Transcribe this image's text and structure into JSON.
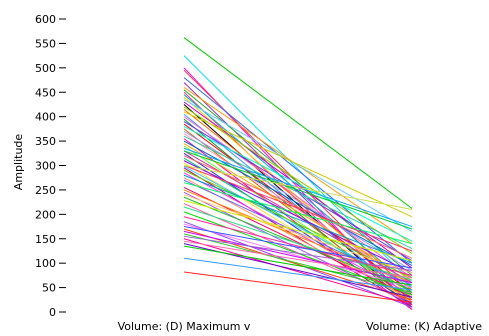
{
  "chart_data": {
    "type": "line",
    "title": "",
    "xlabel": "",
    "ylabel": "Amplitude",
    "categories": [
      "Volume: (D) Maximum v",
      "Volume: (K) Adaptive"
    ],
    "ylim": [
      0,
      600
    ],
    "yticks": [
      0,
      50,
      100,
      150,
      200,
      250,
      300,
      350,
      400,
      450,
      500,
      550,
      600
    ],
    "grid": false,
    "legend": "none",
    "series": [
      {
        "values": [
          562,
          212
        ],
        "color": "#00cc00"
      },
      {
        "values": [
          525,
          60
        ],
        "color": "#00e5ee"
      },
      {
        "values": [
          500,
          10
        ],
        "color": "#ff00ff"
      },
      {
        "values": [
          495,
          35
        ],
        "color": "#ee4444"
      },
      {
        "values": [
          480,
          100
        ],
        "color": "#3366ff"
      },
      {
        "values": [
          470,
          20
        ],
        "color": "#9933cc"
      },
      {
        "values": [
          460,
          140
        ],
        "color": "#ff9900"
      },
      {
        "values": [
          455,
          75
        ],
        "color": "#33aa33"
      },
      {
        "values": [
          450,
          5
        ],
        "color": "#ff3399"
      },
      {
        "values": [
          445,
          50
        ],
        "color": "#00bbbb"
      },
      {
        "values": [
          440,
          30
        ],
        "color": "#ffcc00"
      },
      {
        "values": [
          435,
          165
        ],
        "color": "#66ccff"
      },
      {
        "values": [
          430,
          90
        ],
        "color": "#cc00cc"
      },
      {
        "values": [
          425,
          15
        ],
        "color": "#000000"
      },
      {
        "values": [
          420,
          120
        ],
        "color": "#99cc00"
      },
      {
        "values": [
          415,
          45
        ],
        "color": "#ff6600"
      },
      {
        "values": [
          410,
          195
        ],
        "color": "#cccc00"
      },
      {
        "values": [
          405,
          25
        ],
        "color": "#3399ff"
      },
      {
        "values": [
          400,
          70
        ],
        "color": "#ff66cc"
      },
      {
        "values": [
          395,
          10
        ],
        "color": "#009933"
      },
      {
        "values": [
          390,
          105
        ],
        "color": "#6633ff"
      },
      {
        "values": [
          385,
          40
        ],
        "color": "#ff0000"
      },
      {
        "values": [
          380,
          145
        ],
        "color": "#00ffcc"
      },
      {
        "values": [
          375,
          20
        ],
        "color": "#cc6600"
      },
      {
        "values": [
          370,
          85
        ],
        "color": "#9999ff"
      },
      {
        "values": [
          365,
          55
        ],
        "color": "#ff99cc"
      },
      {
        "values": [
          360,
          130
        ],
        "color": "#33cc99"
      },
      {
        "values": [
          355,
          5
        ],
        "color": "#ff00aa"
      },
      {
        "values": [
          350,
          95
        ],
        "color": "#0066cc"
      },
      {
        "values": [
          345,
          65
        ],
        "color": "#ffaa00"
      },
      {
        "values": [
          340,
          30
        ],
        "color": "#66ff33"
      },
      {
        "values": [
          335,
          175
        ],
        "color": "#00aaff"
      },
      {
        "values": [
          330,
          60
        ],
        "color": "#cc3399"
      },
      {
        "values": [
          325,
          15
        ],
        "color": "#3333cc"
      },
      {
        "values": [
          320,
          110
        ],
        "color": "#ff6666"
      },
      {
        "values": [
          315,
          40
        ],
        "color": "#00cc66"
      },
      {
        "values": [
          310,
          80
        ],
        "color": "#9900ff"
      },
      {
        "values": [
          305,
          20
        ],
        "color": "#ffdd33"
      },
      {
        "values": [
          300,
          125
        ],
        "color": "#ff3366"
      },
      {
        "values": [
          298,
          50
        ],
        "color": "#33ccff"
      },
      {
        "values": [
          295,
          10
        ],
        "color": "#cc0066"
      },
      {
        "values": [
          290,
          70
        ],
        "color": "#66cc00"
      },
      {
        "values": [
          285,
          35
        ],
        "color": "#ff33ff"
      },
      {
        "values": [
          280,
          100
        ],
        "color": "#0099cc"
      },
      {
        "values": [
          275,
          25
        ],
        "color": "#ff9966"
      },
      {
        "values": [
          270,
          55
        ],
        "color": "#6666ff"
      },
      {
        "values": [
          265,
          140
        ],
        "color": "#00ff66"
      },
      {
        "values": [
          255,
          30
        ],
        "color": "#ff0066"
      },
      {
        "values": [
          250,
          60
        ],
        "color": "#ff8800"
      },
      {
        "values": [
          245,
          15
        ],
        "color": "#aa55ff"
      },
      {
        "values": [
          240,
          80
        ],
        "color": "#ffcc66"
      },
      {
        "values": [
          235,
          45
        ],
        "color": "#22bb22"
      },
      {
        "values": [
          228,
          105
        ],
        "color": "#ccee00"
      },
      {
        "values": [
          222,
          20
        ],
        "color": "#ff55aa"
      },
      {
        "values": [
          215,
          65
        ],
        "color": "#33dd88"
      },
      {
        "values": [
          205,
          35
        ],
        "color": "#00dd00"
      },
      {
        "values": [
          195,
          75
        ],
        "color": "#ff2299"
      },
      {
        "values": [
          185,
          10
        ],
        "color": "#8844ff"
      },
      {
        "values": [
          180,
          50
        ],
        "color": "#ff77ff"
      },
      {
        "values": [
          175,
          90
        ],
        "color": "#3355ff"
      },
      {
        "values": [
          170,
          25
        ],
        "color": "#ff4400"
      },
      {
        "values": [
          165,
          60
        ],
        "color": "#cc00ff"
      },
      {
        "values": [
          160,
          40
        ],
        "color": "#33cc33"
      },
      {
        "values": [
          155,
          85
        ],
        "color": "#9966cc"
      },
      {
        "values": [
          150,
          15
        ],
        "color": "#ff0099"
      },
      {
        "values": [
          145,
          70
        ],
        "color": "#ff66aa"
      },
      {
        "values": [
          140,
          30
        ],
        "color": "#6600cc"
      },
      {
        "values": [
          135,
          55
        ],
        "color": "#00cc00"
      },
      {
        "values": [
          110,
          45
        ],
        "color": "#3399ff"
      },
      {
        "values": [
          82,
          20
        ],
        "color": "#ff2222"
      },
      {
        "values": [
          330,
          170
        ],
        "color": "#00cc33"
      },
      {
        "values": [
          300,
          210
        ],
        "color": "#ccdd55"
      }
    ]
  }
}
